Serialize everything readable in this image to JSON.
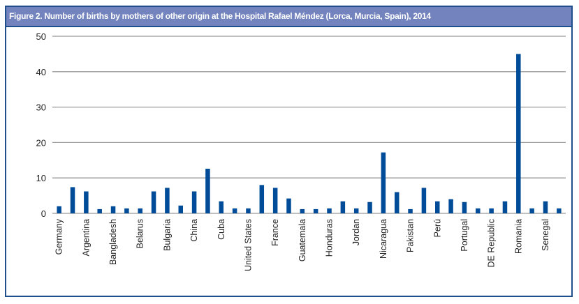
{
  "chart_data": {
    "type": "bar",
    "title": "Figure 2. Number of births by mothers of other origin at the Hospital Rafael Méndez (Lorca, Murcia, Spain), 2014",
    "xlabel": "",
    "ylabel": "",
    "ylim": [
      0,
      50
    ],
    "yticks": [
      "0",
      "10",
      "20",
      "30",
      "40",
      "50"
    ],
    "grid": true,
    "color": "#004c99",
    "categories": [
      "Germany",
      "",
      "Argentina",
      "",
      "Bangladesh",
      "",
      "Belarus",
      "",
      "Bulgaria",
      "",
      "China",
      "",
      "Cuba",
      "",
      "United States",
      "",
      "France",
      "",
      "Guatemala",
      "",
      "Honduras",
      "",
      "Jordan",
      "",
      "Nicaragua",
      "",
      "Pakistan",
      "",
      "Perú",
      "",
      "Portugal",
      "",
      "DE Republic",
      "",
      "Romania",
      "",
      "Senegal",
      ""
    ],
    "values": [
      2,
      7.4,
      6.2,
      1.2,
      2,
      1.4,
      1.4,
      6.2,
      7.2,
      2.2,
      6.2,
      12.6,
      3.4,
      1.4,
      1.4,
      8,
      7.2,
      4.2,
      1.2,
      1.2,
      1.4,
      3.4,
      1.4,
      3.2,
      17.2,
      6,
      1.2,
      7.2,
      3.4,
      4,
      3.2,
      1.4,
      1.4,
      3.4,
      45,
      1.4,
      3.4,
      1.4
    ]
  }
}
